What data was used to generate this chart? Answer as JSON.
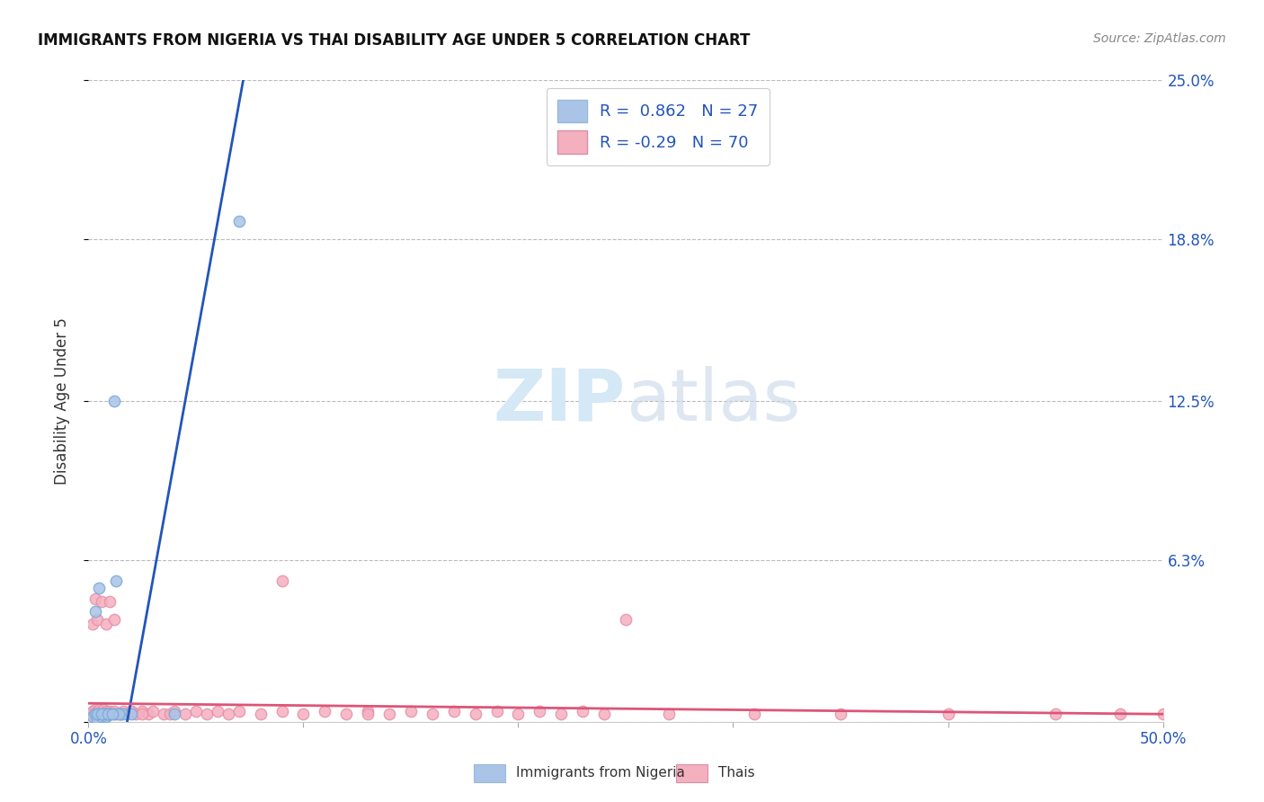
{
  "title": "IMMIGRANTS FROM NIGERIA VS THAI DISABILITY AGE UNDER 5 CORRELATION CHART",
  "source": "Source: ZipAtlas.com",
  "ylabel": "Disability Age Under 5",
  "xlim": [
    0.0,
    0.5
  ],
  "ylim": [
    0.0,
    0.25
  ],
  "nigeria_R": 0.862,
  "nigeria_N": 27,
  "thai_R": -0.29,
  "thai_N": 70,
  "nigeria_color": "#aac4e8",
  "nigeria_edge": "#7aaad8",
  "thai_color": "#f5b0c0",
  "thai_edge": "#e890a8",
  "nigeria_line_color": "#2255bb",
  "thai_line_color": "#dd5577",
  "background_color": "#ffffff",
  "grid_color": "#bbbbbb",
  "watermark_color": "#d5e8f5",
  "nigeria_x": [
    0.002,
    0.003,
    0.004,
    0.005,
    0.006,
    0.007,
    0.008,
    0.009,
    0.01,
    0.012,
    0.013,
    0.015,
    0.003,
    0.005,
    0.008,
    0.012,
    0.016,
    0.004,
    0.007,
    0.01,
    0.014,
    0.02,
    0.006,
    0.009,
    0.011,
    0.04,
    0.07
  ],
  "nigeria_y": [
    0.002,
    0.003,
    0.001,
    0.003,
    0.002,
    0.003,
    0.002,
    0.003,
    0.003,
    0.003,
    0.055,
    0.003,
    0.043,
    0.052,
    0.003,
    0.125,
    0.003,
    0.003,
    0.003,
    0.003,
    0.003,
    0.003,
    0.003,
    0.003,
    0.003,
    0.003,
    0.195
  ],
  "thai_x": [
    0.001,
    0.002,
    0.003,
    0.003,
    0.004,
    0.005,
    0.005,
    0.006,
    0.007,
    0.007,
    0.008,
    0.009,
    0.01,
    0.01,
    0.012,
    0.013,
    0.015,
    0.016,
    0.018,
    0.02,
    0.022,
    0.025,
    0.028,
    0.03,
    0.035,
    0.038,
    0.04,
    0.045,
    0.05,
    0.055,
    0.06,
    0.065,
    0.07,
    0.08,
    0.09,
    0.1,
    0.11,
    0.12,
    0.13,
    0.14,
    0.15,
    0.16,
    0.17,
    0.18,
    0.19,
    0.2,
    0.21,
    0.22,
    0.23,
    0.24,
    0.002,
    0.003,
    0.004,
    0.006,
    0.008,
    0.01,
    0.012,
    0.015,
    0.02,
    0.025,
    0.09,
    0.13,
    0.27,
    0.25,
    0.35,
    0.31,
    0.4,
    0.45,
    0.48,
    0.5
  ],
  "thai_y": [
    0.003,
    0.004,
    0.005,
    0.003,
    0.004,
    0.003,
    0.005,
    0.004,
    0.003,
    0.005,
    0.004,
    0.003,
    0.004,
    0.003,
    0.004,
    0.003,
    0.003,
    0.004,
    0.003,
    0.004,
    0.003,
    0.004,
    0.003,
    0.004,
    0.003,
    0.003,
    0.004,
    0.003,
    0.004,
    0.003,
    0.004,
    0.003,
    0.004,
    0.003,
    0.004,
    0.003,
    0.004,
    0.003,
    0.004,
    0.003,
    0.004,
    0.003,
    0.004,
    0.003,
    0.004,
    0.003,
    0.004,
    0.003,
    0.004,
    0.003,
    0.038,
    0.048,
    0.04,
    0.047,
    0.038,
    0.047,
    0.04,
    0.003,
    0.004,
    0.003,
    0.055,
    0.003,
    0.003,
    0.04,
    0.003,
    0.003,
    0.003,
    0.003,
    0.003,
    0.003
  ],
  "nig_line_x0": 0.018,
  "nig_line_y0": 0.0,
  "nig_line_x1": 0.072,
  "nig_line_y1": 0.25,
  "thai_line_x0": 0.0,
  "thai_line_y0": 0.0072,
  "thai_line_x1": 0.5,
  "thai_line_y1": 0.003
}
